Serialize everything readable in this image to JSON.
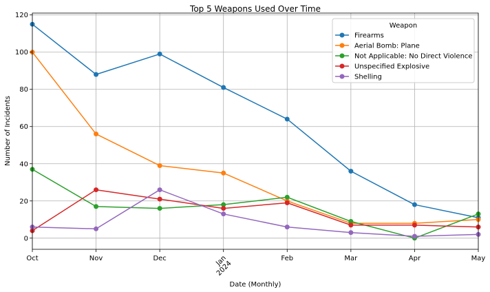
{
  "chart_data": {
    "type": "line",
    "title": "Top 5 Weapons Used Over Time",
    "xlabel": "Date (Monthly)",
    "ylabel": "Number of Incidents",
    "x": [
      "2023-10",
      "2023-11",
      "2023-12",
      "2024-01",
      "2024-02",
      "2024-03",
      "2024-04",
      "2024-05"
    ],
    "x_tick_labels": [
      "Oct",
      "Nov",
      "Dec",
      "Jan\n2024",
      "Feb",
      "Mar",
      "Apr",
      "May"
    ],
    "ylim": [
      -6,
      121
    ],
    "y_ticks": [
      0,
      20,
      40,
      60,
      80,
      100,
      120
    ],
    "grid": true,
    "legend": {
      "title": "Weapon",
      "placement": "top-right"
    },
    "series": [
      {
        "name": "Firearms",
        "color": "#1f77b4",
        "values": [
          115,
          88,
          99,
          81,
          64,
          36,
          18,
          11
        ]
      },
      {
        "name": "Aerial Bomb: Plane",
        "color": "#ff7f0e",
        "values": [
          100,
          56,
          39,
          35,
          20,
          8,
          8,
          10
        ]
      },
      {
        "name": "Not Applicable: No Direct Violence",
        "color": "#2ca02c",
        "values": [
          37,
          17,
          16,
          18,
          22,
          9,
          0,
          13
        ]
      },
      {
        "name": "Unspecified Explosive",
        "color": "#d62728",
        "values": [
          4,
          26,
          21,
          16,
          19,
          7,
          7,
          6
        ]
      },
      {
        "name": "Shelling",
        "color": "#9467bd",
        "values": [
          6,
          5,
          26,
          13,
          6,
          3,
          1,
          2
        ]
      }
    ]
  }
}
